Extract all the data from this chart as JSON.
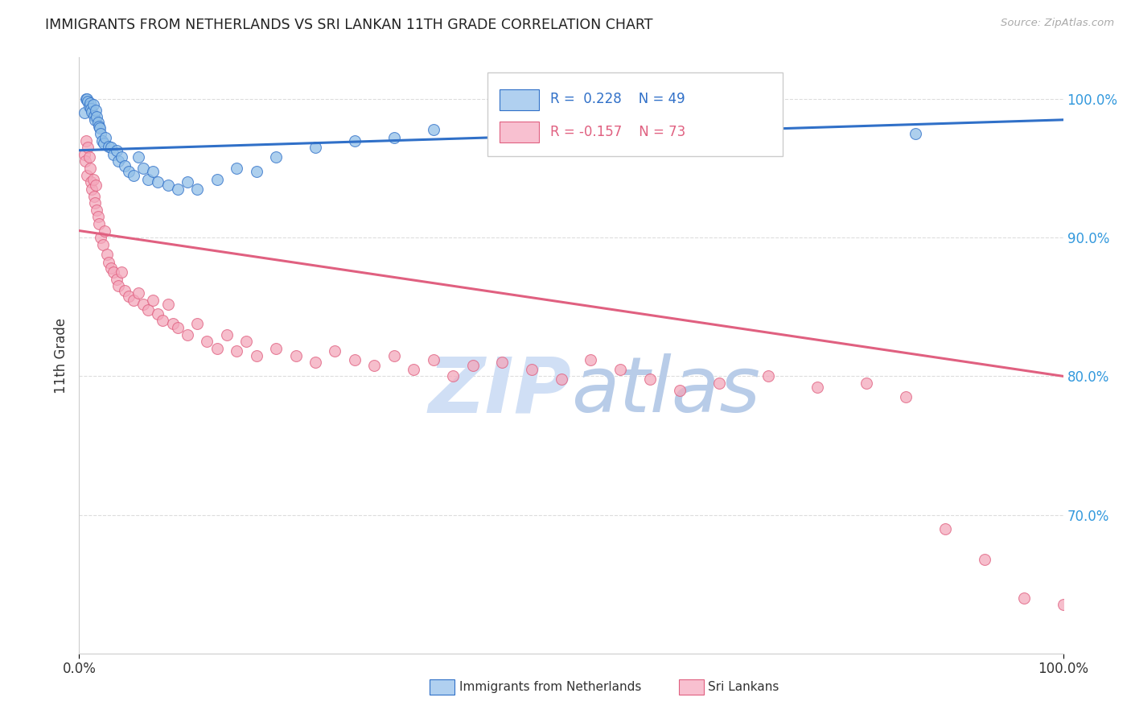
{
  "title": "IMMIGRANTS FROM NETHERLANDS VS SRI LANKAN 11TH GRADE CORRELATION CHART",
  "source": "Source: ZipAtlas.com",
  "ylabel": "11th Grade",
  "xlim": [
    0.0,
    1.0
  ],
  "ylim": [
    0.6,
    1.03
  ],
  "yticks": [
    0.7,
    0.8,
    0.9,
    1.0
  ],
  "ytick_labels": [
    "70.0%",
    "80.0%",
    "90.0%",
    "100.0%"
  ],
  "blue_R": 0.228,
  "blue_N": 49,
  "pink_R": -0.157,
  "pink_N": 73,
  "blue_color": "#92c0e8",
  "pink_color": "#f4a8bc",
  "blue_line_color": "#3070c8",
  "pink_line_color": "#e06080",
  "legend_blue_color": "#b0d0f0",
  "legend_pink_color": "#f8c0d0",
  "watermark_zip": "ZIP",
  "watermark_atlas": "atlas",
  "watermark_color": "#d0dff5",
  "background_color": "#ffffff",
  "grid_color": "#dddddd",
  "title_color": "#222222",
  "axis_label_color": "#333333",
  "tick_label_color_right": "#3399dd",
  "blue_line_x0": 0.0,
  "blue_line_x1": 1.0,
  "blue_line_y0": 0.963,
  "blue_line_y1": 0.985,
  "pink_line_x0": 0.0,
  "pink_line_x1": 1.0,
  "pink_line_y0": 0.905,
  "pink_line_y1": 0.8,
  "blue_scatter_x": [
    0.005,
    0.007,
    0.008,
    0.009,
    0.01,
    0.011,
    0.012,
    0.013,
    0.014,
    0.015,
    0.016,
    0.017,
    0.018,
    0.019,
    0.02,
    0.021,
    0.022,
    0.023,
    0.025,
    0.027,
    0.03,
    0.032,
    0.035,
    0.038,
    0.04,
    0.043,
    0.046,
    0.05,
    0.055,
    0.06,
    0.065,
    0.07,
    0.075,
    0.08,
    0.09,
    0.1,
    0.11,
    0.12,
    0.14,
    0.16,
    0.18,
    0.2,
    0.24,
    0.28,
    0.32,
    0.36,
    0.5,
    0.7,
    0.85
  ],
  "blue_scatter_y": [
    0.99,
    1.0,
    1.0,
    0.998,
    0.995,
    0.997,
    0.993,
    0.991,
    0.996,
    0.988,
    0.985,
    0.992,
    0.987,
    0.983,
    0.98,
    0.979,
    0.975,
    0.97,
    0.968,
    0.972,
    0.966,
    0.965,
    0.96,
    0.963,
    0.955,
    0.958,
    0.952,
    0.948,
    0.945,
    0.958,
    0.95,
    0.942,
    0.948,
    0.94,
    0.938,
    0.935,
    0.94,
    0.935,
    0.942,
    0.95,
    0.948,
    0.958,
    0.965,
    0.97,
    0.972,
    0.978,
    0.985,
    0.97,
    0.975
  ],
  "pink_scatter_x": [
    0.005,
    0.006,
    0.007,
    0.008,
    0.009,
    0.01,
    0.011,
    0.012,
    0.013,
    0.014,
    0.015,
    0.016,
    0.017,
    0.018,
    0.019,
    0.02,
    0.022,
    0.024,
    0.026,
    0.028,
    0.03,
    0.032,
    0.035,
    0.038,
    0.04,
    0.043,
    0.046,
    0.05,
    0.055,
    0.06,
    0.065,
    0.07,
    0.075,
    0.08,
    0.085,
    0.09,
    0.095,
    0.1,
    0.11,
    0.12,
    0.13,
    0.14,
    0.15,
    0.16,
    0.17,
    0.18,
    0.2,
    0.22,
    0.24,
    0.26,
    0.28,
    0.3,
    0.32,
    0.34,
    0.36,
    0.38,
    0.4,
    0.43,
    0.46,
    0.49,
    0.52,
    0.55,
    0.58,
    0.61,
    0.65,
    0.7,
    0.75,
    0.8,
    0.84,
    0.88,
    0.92,
    0.96,
    1.0
  ],
  "pink_scatter_y": [
    0.96,
    0.955,
    0.97,
    0.945,
    0.965,
    0.958,
    0.95,
    0.94,
    0.935,
    0.942,
    0.93,
    0.925,
    0.938,
    0.92,
    0.915,
    0.91,
    0.9,
    0.895,
    0.905,
    0.888,
    0.882,
    0.878,
    0.875,
    0.87,
    0.865,
    0.875,
    0.862,
    0.858,
    0.855,
    0.86,
    0.852,
    0.848,
    0.855,
    0.845,
    0.84,
    0.852,
    0.838,
    0.835,
    0.83,
    0.838,
    0.825,
    0.82,
    0.83,
    0.818,
    0.825,
    0.815,
    0.82,
    0.815,
    0.81,
    0.818,
    0.812,
    0.808,
    0.815,
    0.805,
    0.812,
    0.8,
    0.808,
    0.81,
    0.805,
    0.798,
    0.812,
    0.805,
    0.798,
    0.79,
    0.795,
    0.8,
    0.792,
    0.795,
    0.785,
    0.69,
    0.668,
    0.64,
    0.635
  ]
}
